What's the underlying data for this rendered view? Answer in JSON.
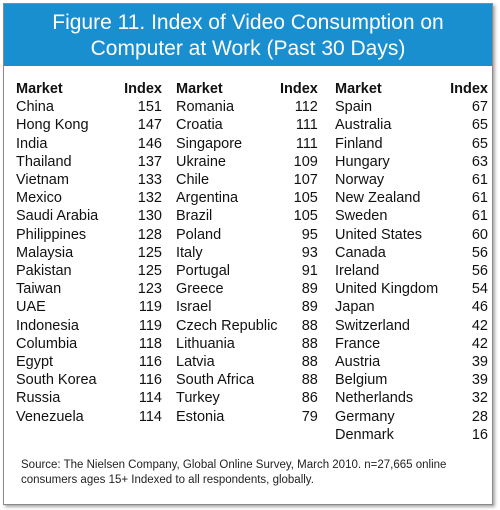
{
  "title_line1": "Figure 11. Index of Video Consumption on",
  "title_line2": "Computer at Work (Past 30 Days)",
  "colors": {
    "header_bg": "#1a8fd0",
    "header_text": "#ffffff",
    "text": "#111111"
  },
  "chart_data": {
    "type": "table",
    "columns": [
      "Market",
      "Index"
    ],
    "rows": [
      [
        "China",
        151
      ],
      [
        "Hong Kong",
        147
      ],
      [
        "India",
        146
      ],
      [
        "Thailand",
        137
      ],
      [
        "Vietnam",
        133
      ],
      [
        "Mexico",
        132
      ],
      [
        "Saudi Arabia",
        130
      ],
      [
        "Philippines",
        128
      ],
      [
        "Malaysia",
        125
      ],
      [
        "Pakistan",
        125
      ],
      [
        "Taiwan",
        123
      ],
      [
        "UAE",
        119
      ],
      [
        "Indonesia",
        119
      ],
      [
        "Columbia",
        118
      ],
      [
        "Egypt",
        116
      ],
      [
        "South Korea",
        116
      ],
      [
        "Russia",
        114
      ],
      [
        "Venezuela",
        114
      ],
      [
        "Romania",
        112
      ],
      [
        "Croatia",
        111
      ],
      [
        "Singapore",
        111
      ],
      [
        "Ukraine",
        109
      ],
      [
        "Chile",
        107
      ],
      [
        "Argentina",
        105
      ],
      [
        "Brazil",
        105
      ],
      [
        "Poland",
        95
      ],
      [
        "Italy",
        93
      ],
      [
        "Portugal",
        91
      ],
      [
        "Greece",
        89
      ],
      [
        "Israel",
        89
      ],
      [
        "Czech Republic",
        88
      ],
      [
        "Lithuania",
        88
      ],
      [
        "Latvia",
        88
      ],
      [
        "South Africa",
        88
      ],
      [
        "Turkey",
        86
      ],
      [
        "Estonia",
        79
      ],
      [
        "Spain",
        67
      ],
      [
        "Australia",
        65
      ],
      [
        "Finland",
        65
      ],
      [
        "Hungary",
        63
      ],
      [
        "Norway",
        61
      ],
      [
        "New Zealand",
        61
      ],
      [
        "Sweden",
        61
      ],
      [
        "United States",
        60
      ],
      [
        "Canada",
        56
      ],
      [
        "Ireland",
        56
      ],
      [
        "United Kingdom",
        54
      ],
      [
        "Japan",
        46
      ],
      [
        "Switzerland",
        42
      ],
      [
        "France",
        42
      ],
      [
        "Austria",
        39
      ],
      [
        "Belgium",
        39
      ],
      [
        "Netherlands",
        32
      ],
      [
        "Germany",
        28
      ],
      [
        "Denmark",
        16
      ]
    ]
  },
  "source_note": "Source: The Nielsen Company, Global Online Survey, March 2010. n=27,665 online consumers ages 15+ Indexed to all respondents, globally."
}
